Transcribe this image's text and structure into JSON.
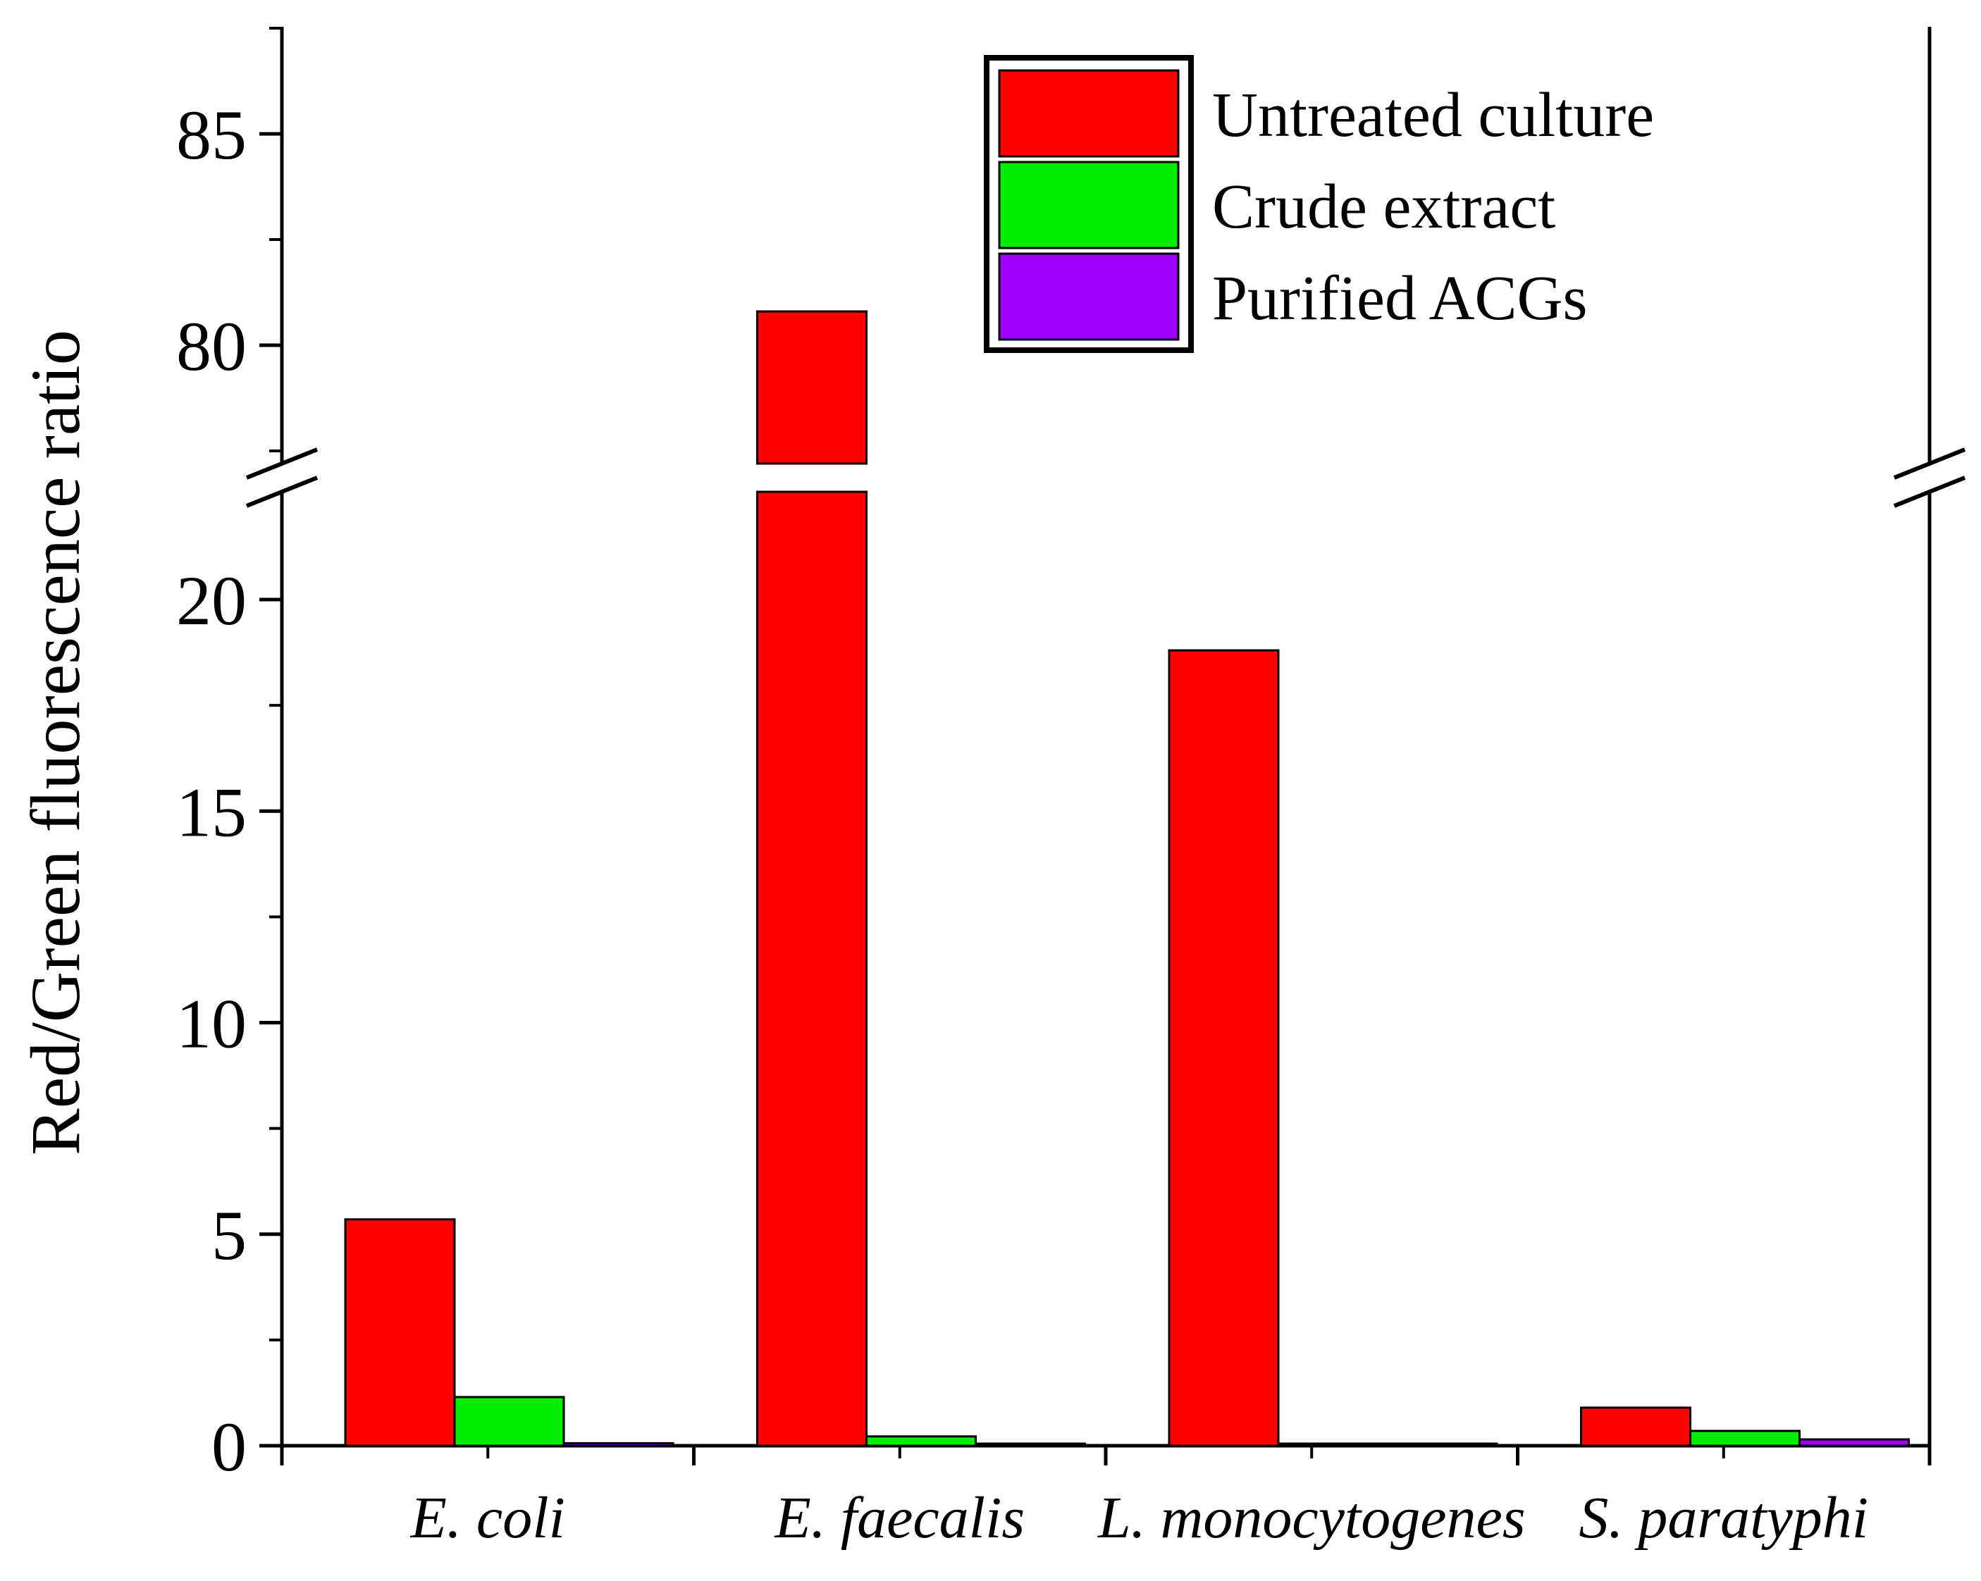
{
  "chart_data": {
    "type": "bar",
    "title": "",
    "xlabel": "",
    "ylabel": "Red/Green fluorescence ratio",
    "y_axis_break": {
      "lower_range": [
        0,
        22
      ],
      "upper_range": [
        77,
        87
      ]
    },
    "yticks_lower": [
      "0",
      "5",
      "10",
      "15",
      "20"
    ],
    "yticks_upper": [
      "80",
      "85"
    ],
    "categories": [
      "E. coli",
      "E. faecalis",
      "L. monocytogenes",
      "S. paratyphi"
    ],
    "series": [
      {
        "name": "Untreated culture",
        "color": "#ff0000",
        "values": [
          5.35,
          80.8,
          18.8,
          0.9
        ]
      },
      {
        "name": "Crude extract",
        "color": "#00ee00",
        "values": [
          1.15,
          0.22,
          0.04,
          0.35
        ]
      },
      {
        "name": "Purified ACGs",
        "color": "#a000ff",
        "values": [
          0.06,
          0.0,
          0.04,
          0.15
        ]
      }
    ],
    "legend_position": "top-right",
    "grid": false
  }
}
